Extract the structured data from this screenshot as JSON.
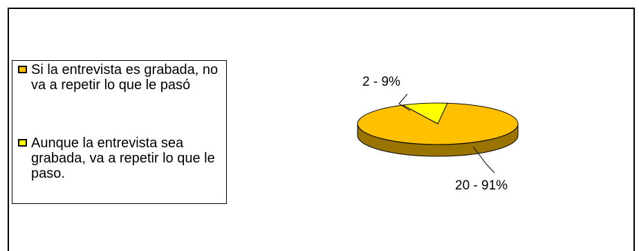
{
  "colors": {
    "slice_0": "#ffc000",
    "slice_0_side": "#9a7400",
    "slice_1": "#ffff00",
    "slice_1_side": "#a6a600"
  },
  "chart_data": {
    "type": "pie",
    "categories": [
      "Si la entrevista es grabada, no va a repetir lo que le pasó",
      "Aunque la entrevista sea grabada, va a repetir lo que le paso."
    ],
    "values": [
      20,
      2
    ],
    "percentages": [
      91,
      9
    ],
    "data_labels": [
      "20  -  91%",
      "2  -  9%"
    ],
    "legend_position": "left",
    "three_d": true
  }
}
